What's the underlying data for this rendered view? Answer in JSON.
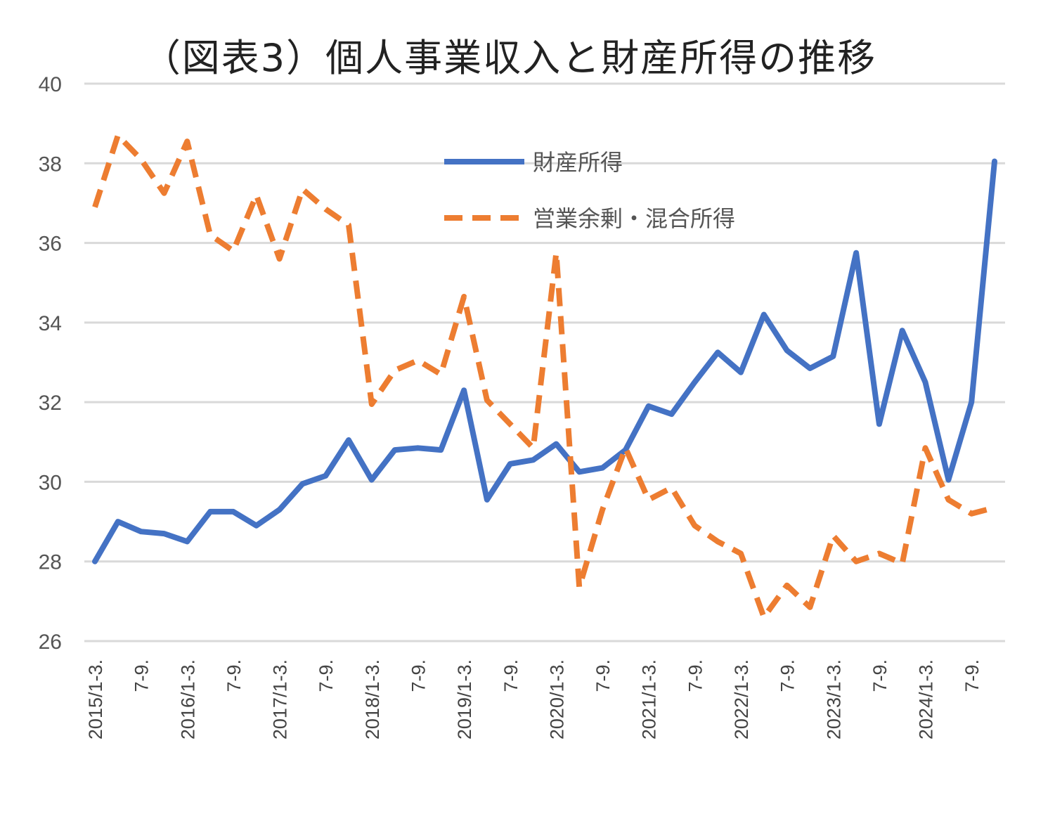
{
  "chart_data": {
    "type": "line",
    "title": "（図表3）個人事業収入と財産所得の推移",
    "xlabel": "",
    "ylabel": "",
    "ylim": [
      26,
      40
    ],
    "yticks": [
      26,
      28,
      30,
      32,
      34,
      36,
      38,
      40
    ],
    "grid": true,
    "legend_position": "top-center",
    "x_tick_labels": [
      "2015/1-3.",
      "7-9.",
      "2016/1-3.",
      "7-9.",
      "2017/1-3.",
      "7-9.",
      "2018/1-3.",
      "7-9.",
      "2019/1-3.",
      "7-9.",
      "2020/1-3.",
      "7-9.",
      "2021/1-3.",
      "7-9.",
      "2022/1-3.",
      "7-9.",
      "2023/1-3.",
      "7-9.",
      "2024/1-3.",
      "7-9."
    ],
    "categories": [
      "2015/1-3.",
      "2015/4-6.",
      "2015/7-9.",
      "2015/10-12.",
      "2016/1-3.",
      "2016/4-6.",
      "2016/7-9.",
      "2016/10-12.",
      "2017/1-3.",
      "2017/4-6.",
      "2017/7-9.",
      "2017/10-12.",
      "2018/1-3.",
      "2018/4-6.",
      "2018/7-9.",
      "2018/10-12.",
      "2019/1-3.",
      "2019/4-6.",
      "2019/7-9.",
      "2019/10-12.",
      "2020/1-3.",
      "2020/4-6.",
      "2020/7-9.",
      "2020/10-12.",
      "2021/1-3.",
      "2021/4-6.",
      "2021/7-9.",
      "2021/10-12.",
      "2022/1-3.",
      "2022/4-6.",
      "2022/7-9.",
      "2022/10-12.",
      "2023/1-3.",
      "2023/4-6.",
      "2023/7-9.",
      "2023/10-12.",
      "2024/1-3.",
      "2024/4-6.",
      "2024/7-9.",
      "2024/10-12."
    ],
    "series": [
      {
        "name": "財産所得",
        "color": "#4472C4",
        "style": "solid",
        "values": [
          28.0,
          29.0,
          28.75,
          28.7,
          28.5,
          29.25,
          29.25,
          28.9,
          29.3,
          29.95,
          30.15,
          31.05,
          30.05,
          30.8,
          30.85,
          30.8,
          32.3,
          29.55,
          30.45,
          30.55,
          30.95,
          30.25,
          30.35,
          30.8,
          31.9,
          31.7,
          32.5,
          33.25,
          32.75,
          34.2,
          33.3,
          32.85,
          33.15,
          35.75,
          31.45,
          33.8,
          32.5,
          30.05,
          32.0,
          38.05
        ]
      },
      {
        "name": "営業余剰・混合所得",
        "color": "#ED7D31",
        "style": "dashed",
        "values": [
          36.9,
          38.7,
          38.1,
          37.25,
          38.55,
          36.2,
          35.8,
          37.2,
          35.6,
          37.35,
          36.85,
          36.45,
          31.95,
          32.8,
          33.05,
          32.7,
          34.65,
          32.05,
          31.45,
          30.85,
          35.75,
          27.35,
          29.3,
          30.85,
          29.55,
          29.85,
          28.9,
          28.5,
          28.2,
          26.6,
          27.4,
          26.85,
          28.65,
          28.0,
          28.2,
          27.95,
          30.85,
          29.55,
          29.2,
          29.35
        ]
      }
    ]
  }
}
